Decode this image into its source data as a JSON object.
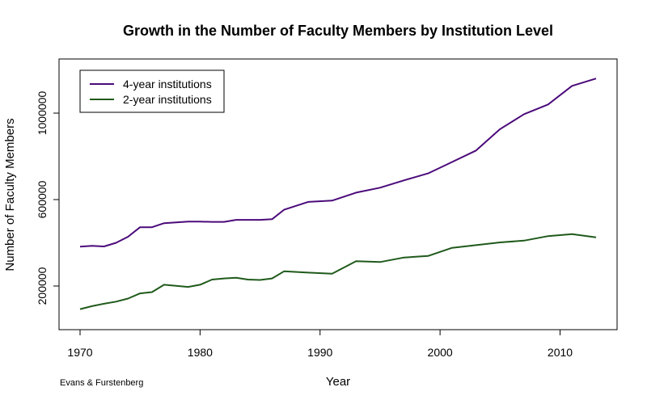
{
  "chart_data": {
    "type": "line",
    "title": "Growth in the Number of Faculty Members by Institution Level",
    "xlabel": "Year",
    "ylabel": "Number of Faculty Members",
    "caption": "Evans & Furstenberg",
    "xlim": [
      1970,
      2013
    ],
    "ylim": [
      90000,
      1250000
    ],
    "x_ticks": [
      1970,
      1980,
      1990,
      2000,
      2010
    ],
    "y_ticks": [
      200000,
      600000,
      1000000
    ],
    "y_tick_labels": [
      "200000",
      "600000",
      "1000000"
    ],
    "grid": false,
    "legend_position": "top-left",
    "series": [
      {
        "name": "4-year institutions",
        "color": "#4b0a7a",
        "x": [
          1970,
          1971,
          1972,
          1973,
          1974,
          1975,
          1976,
          1977,
          1979,
          1980,
          1981,
          1982,
          1983,
          1984,
          1985,
          1986,
          1987,
          1989,
          1991,
          1993,
          1995,
          1997,
          1999,
          2001,
          2003,
          2005,
          2007,
          2009,
          2011,
          2013
        ],
        "y": [
          382000,
          386000,
          383000,
          400000,
          428000,
          472000,
          472000,
          491000,
          498000,
          498000,
          497000,
          497000,
          506000,
          506000,
          506000,
          509000,
          553000,
          589000,
          595000,
          632000,
          655000,
          689000,
          721000,
          774000,
          827000,
          926000,
          995000,
          1040000,
          1126000,
          1160000
        ]
      },
      {
        "name": "2-year institutions",
        "color": "#1f5a1b",
        "x": [
          1970,
          1971,
          1972,
          1973,
          1974,
          1975,
          1976,
          1977,
          1979,
          1980,
          1981,
          1982,
          1983,
          1984,
          1985,
          1986,
          1987,
          1989,
          1991,
          1993,
          1995,
          1997,
          1999,
          2001,
          2003,
          2005,
          2007,
          2009,
          2011,
          2013
        ],
        "y": [
          93000,
          107000,
          118000,
          128000,
          142000,
          166000,
          172000,
          206000,
          196000,
          206000,
          230000,
          235000,
          238000,
          230000,
          228000,
          235000,
          268000,
          262000,
          257000,
          315000,
          311000,
          332000,
          339000,
          377000,
          389000,
          402000,
          410000,
          431000,
          440000,
          425000
        ]
      }
    ]
  }
}
